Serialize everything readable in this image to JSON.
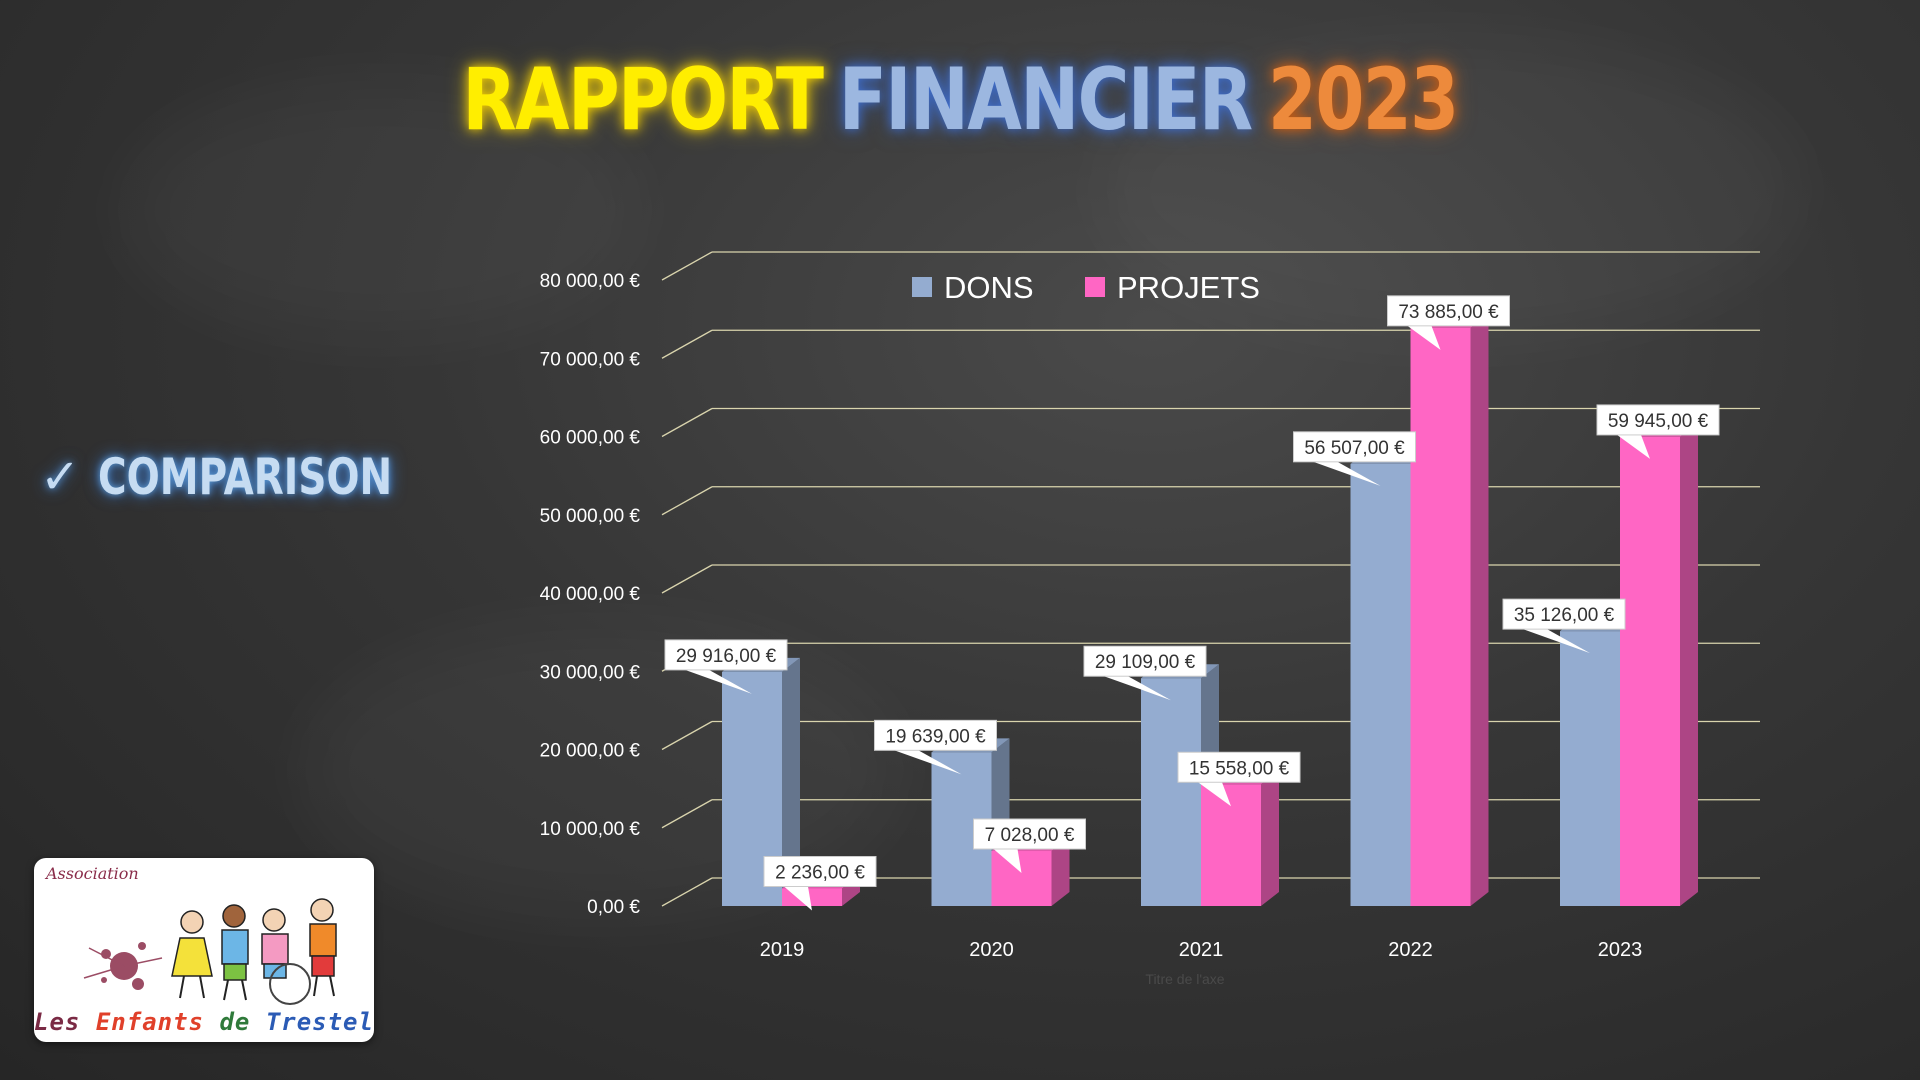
{
  "title": {
    "word1": "RAPPORT",
    "word2": "FINANCIER",
    "word3": "2023"
  },
  "sidebar": {
    "check_icon": "checkmark-icon",
    "label": "COMPARISON"
  },
  "logo": {
    "top_text": "Association",
    "bottom_words": [
      {
        "text": "Les",
        "color": "#7a2a44"
      },
      {
        "text": "Enfants",
        "color": "#e0402a"
      },
      {
        "text": "de",
        "color": "#2f7a3a"
      },
      {
        "text": "Trestel",
        "color": "#2b5bb5"
      }
    ]
  },
  "colors": {
    "dons": "#94acd0",
    "projets": "#ff66c4",
    "gridline": "#d9d4ad",
    "label_bg": "#ffffff"
  },
  "chart_data": {
    "type": "bar",
    "categories": [
      "2019",
      "2020",
      "2021",
      "2022",
      "2023"
    ],
    "series": [
      {
        "name": "DONS",
        "values": [
          29916,
          19639,
          29109,
          56507,
          35126
        ],
        "labels": [
          "29 916,00 €",
          "19 639,00 €",
          "29 109,00 €",
          "56 507,00 €",
          "35 126,00 €"
        ]
      },
      {
        "name": "PROJETS",
        "values": [
          2236,
          7028,
          15558,
          73885,
          59945
        ],
        "labels": [
          "2 236,00 €",
          "7 028,00 €",
          "15 558,00 €",
          "73 885,00 €",
          "59 945,00 €"
        ]
      }
    ],
    "ylim": [
      0,
      80000
    ],
    "y_ticks": [
      0,
      10000,
      20000,
      30000,
      40000,
      50000,
      60000,
      70000,
      80000
    ],
    "y_tick_labels": [
      "0,00 €",
      "10 000,00 €",
      "20 000,00 €",
      "30 000,00 €",
      "40 000,00 €",
      "50 000,00 €",
      "60 000,00 €",
      "70 000,00 €",
      "80 000,00 €"
    ],
    "legend_position": "top-center",
    "x_axis_title": "Titre de l'axe",
    "grid": true,
    "style": "3d-clustered-column"
  }
}
